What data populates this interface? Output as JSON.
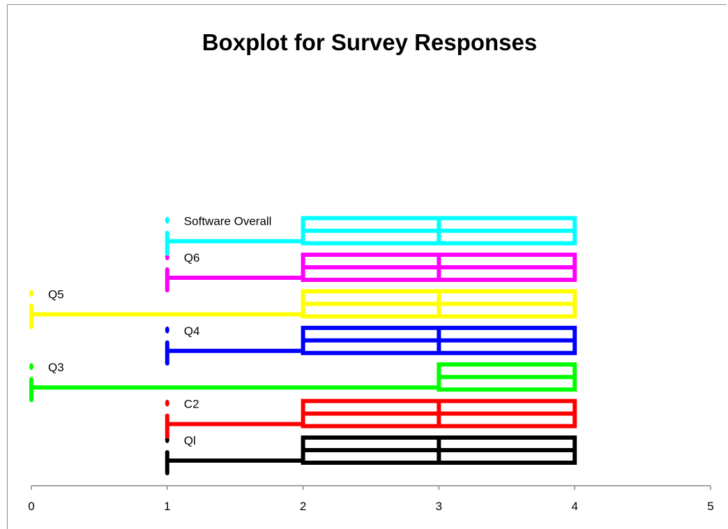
{
  "chart_data": {
    "type": "boxplot",
    "title": "Boxplot for Survey Responses",
    "xlabel": "",
    "ylabel": "",
    "xlim": [
      0,
      5
    ],
    "x_ticks": [
      "0",
      "1",
      "2",
      "3",
      "4",
      "5"
    ],
    "grid": false,
    "legend": "none",
    "series": [
      {
        "name": "Ql",
        "min": 1,
        "q1": 2,
        "median": 3,
        "q3": 4,
        "max": 4,
        "color": "#000000"
      },
      {
        "name": "C2",
        "min": 1,
        "q1": 2,
        "median": 3,
        "q3": 4,
        "max": 4,
        "color": "#ff0000"
      },
      {
        "name": "Q3",
        "min": 0,
        "q1": 3,
        "median": 3,
        "q3": 4,
        "max": 4,
        "color": "#00ff00"
      },
      {
        "name": "Q4",
        "min": 1,
        "q1": 2,
        "median": 3,
        "q3": 4,
        "max": 4,
        "color": "#0000ff"
      },
      {
        "name": "Q5",
        "min": 0,
        "q1": 2,
        "median": 3,
        "q3": 4,
        "max": 4,
        "color": "#ffff00"
      },
      {
        "name": "Q6",
        "min": 1,
        "q1": 2,
        "median": 3,
        "q3": 4,
        "max": 4,
        "color": "#ff00ff"
      },
      {
        "name": "Software Overall",
        "min": 1,
        "q1": 2,
        "median": 3,
        "q3": 4,
        "max": 4,
        "color": "#00ffff"
      }
    ]
  }
}
